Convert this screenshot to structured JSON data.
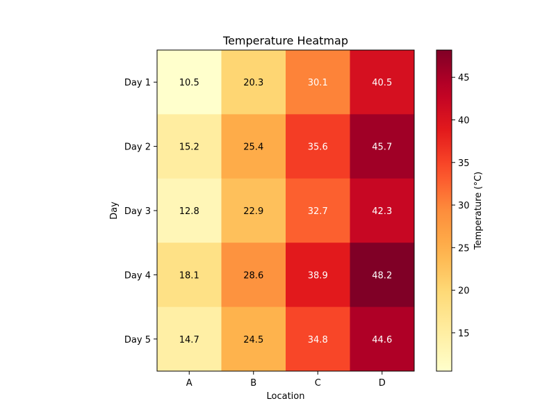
{
  "chart_data": {
    "type": "heatmap",
    "title": "Temperature Heatmap",
    "xlabel": "Location",
    "ylabel": "Day",
    "x_categories": [
      "A",
      "B",
      "C",
      "D"
    ],
    "y_categories": [
      "Day 1",
      "Day 2",
      "Day 3",
      "Day 4",
      "Day 5"
    ],
    "values": [
      [
        10.5,
        20.3,
        30.1,
        40.5
      ],
      [
        15.2,
        25.4,
        35.6,
        45.7
      ],
      [
        12.8,
        22.9,
        32.7,
        42.3
      ],
      [
        18.1,
        28.6,
        38.9,
        48.2
      ],
      [
        14.7,
        24.5,
        34.8,
        44.6
      ]
    ],
    "colormap": "YlOrRd",
    "color_range": [
      10.5,
      48.2
    ],
    "colorbar": {
      "label": "Temperature (°C)",
      "ticks": [
        15,
        20,
        25,
        30,
        35,
        40,
        45
      ]
    },
    "annotation_colors": {
      "dark_text": "#000000",
      "light_text": "#ffffff"
    }
  }
}
